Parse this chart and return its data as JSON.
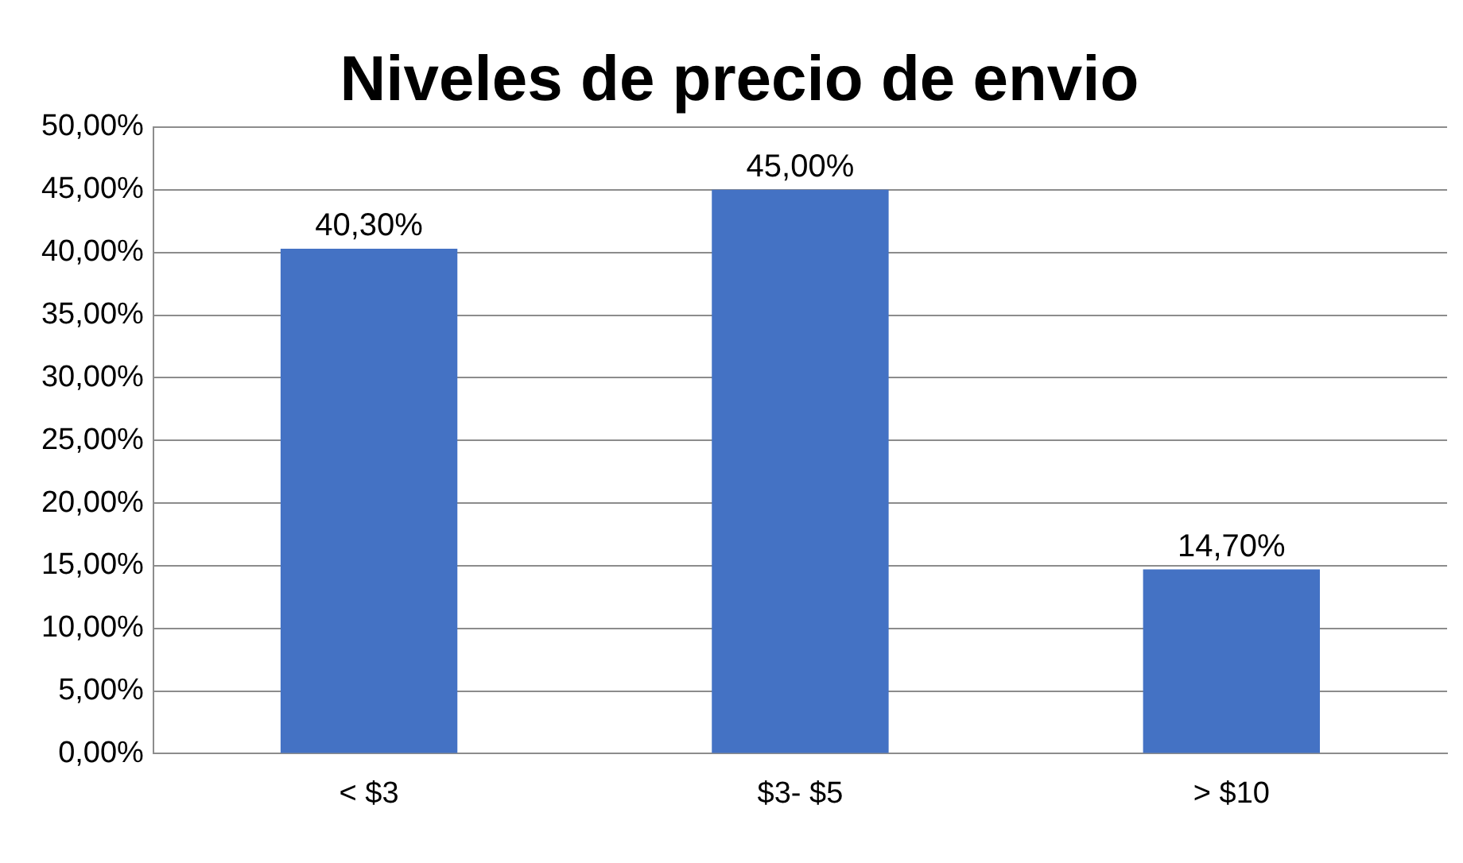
{
  "chart_data": {
    "type": "bar",
    "title": "Niveles de precio de envio",
    "categories": [
      "< $3",
      "$3- $5",
      "> $10"
    ],
    "values": [
      40.3,
      45,
      14.7
    ],
    "value_labels": [
      "40,30%",
      "45,00%",
      "14,70%"
    ],
    "color": "#4472c4",
    "ylim": [
      0,
      50
    ],
    "yticks": [
      {
        "value": 0,
        "label": "0,00%"
      },
      {
        "value": 5,
        "label": "5,00%"
      },
      {
        "value": 10,
        "label": "10,00%"
      },
      {
        "value": 15,
        "label": "15,00%"
      },
      {
        "value": 20,
        "label": "20,00%"
      },
      {
        "value": 25,
        "label": "25,00%"
      },
      {
        "value": 30,
        "label": "30,00%"
      },
      {
        "value": 35,
        "label": "35,00%"
      },
      {
        "value": 40,
        "label": "40,00%"
      },
      {
        "value": 45,
        "label": "45,00%"
      },
      {
        "value": 50,
        "label": "50,00%"
      }
    ],
    "grid": "y",
    "legend": false
  }
}
